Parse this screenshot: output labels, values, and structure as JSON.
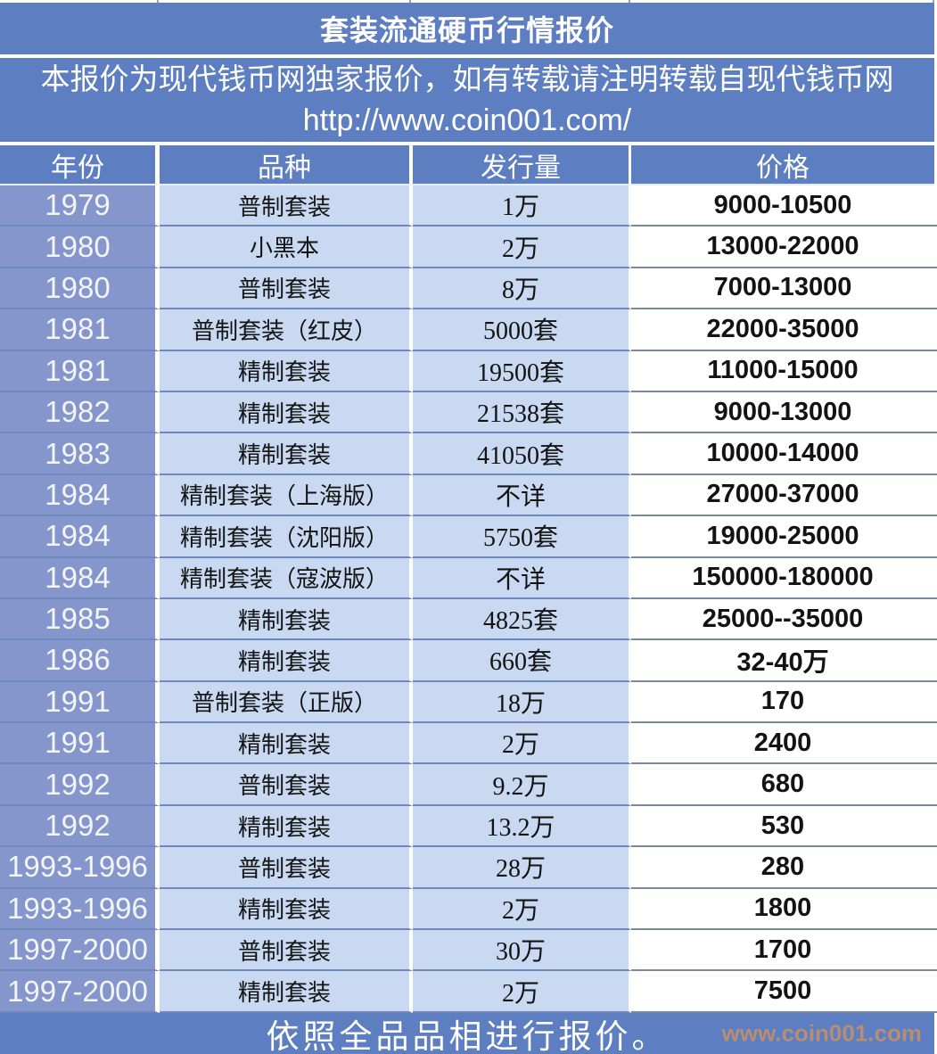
{
  "title": "套装流通硬币行情报价",
  "disclaimer": {
    "line1": "本报价为现代钱币网独家报价，如有转载请注明转载自现代钱币网",
    "url": "http://www.coin001.com/"
  },
  "table": {
    "headers": [
      "年份",
      "品种",
      "发行量",
      "价格"
    ],
    "rows": [
      {
        "year": "1979",
        "variety": "普制套装",
        "mintage": "1万",
        "price": "9000-10500"
      },
      {
        "year": "1980",
        "variety": "小黑本",
        "mintage": "2万",
        "price": "13000-22000"
      },
      {
        "year": "1980",
        "variety": "普制套装",
        "mintage": "8万",
        "price": "7000-13000"
      },
      {
        "year": "1981",
        "variety": "普制套装（红皮）",
        "mintage": "5000套",
        "price": "22000-35000"
      },
      {
        "year": "1981",
        "variety": "精制套装",
        "mintage": "19500套",
        "price": "11000-15000"
      },
      {
        "year": "1982",
        "variety": "精制套装",
        "mintage": "21538套",
        "price": "9000-13000"
      },
      {
        "year": "1983",
        "variety": "精制套装",
        "mintage": "41050套",
        "price": "10000-14000"
      },
      {
        "year": "1984",
        "variety": "精制套装（上海版）",
        "mintage": "不详",
        "price": "27000-37000"
      },
      {
        "year": "1984",
        "variety": "精制套装（沈阳版）",
        "mintage": "5750套",
        "price": "19000-25000"
      },
      {
        "year": "1984",
        "variety": "精制套装（寇波版）",
        "mintage": "不详",
        "price": "150000-180000"
      },
      {
        "year": "1985",
        "variety": "精制套装",
        "mintage": "4825套",
        "price": "25000--35000"
      },
      {
        "year": "1986",
        "variety": "精制套装",
        "mintage": "660套",
        "price": "32-40万"
      },
      {
        "year": "1991",
        "variety": "普制套装（正版）",
        "mintage": "18万",
        "price": "170"
      },
      {
        "year": "1991",
        "variety": "精制套装",
        "mintage": "2万",
        "price": "2400"
      },
      {
        "year": "1992",
        "variety": "普制套装",
        "mintage": "9.2万",
        "price": "680"
      },
      {
        "year": "1992",
        "variety": "精制套装",
        "mintage": "13.2万",
        "price": "530"
      },
      {
        "year": "1993-1996",
        "variety": "普制套装",
        "mintage": "28万",
        "price": "280"
      },
      {
        "year": "1993-1996",
        "variety": "精制套装",
        "mintage": "2万",
        "price": "1800"
      },
      {
        "year": "1997-2000",
        "variety": "普制套装",
        "mintage": "30万",
        "price": "1700"
      },
      {
        "year": "1997-2000",
        "variety": "精制套装",
        "mintage": "2万",
        "price": "7500"
      }
    ]
  },
  "footer": {
    "note": "依照全品品相进行报价。",
    "watermark": "www.coin001.com"
  },
  "colors": {
    "band_blue": "#5d7ec1",
    "year_cell_blue": "#8496cb",
    "light_cell_blue": "#c8d9f1",
    "row_line_blue": "#7089bd",
    "row_line_gray": "#78899d",
    "watermark_orange": "#bc8f6e"
  }
}
